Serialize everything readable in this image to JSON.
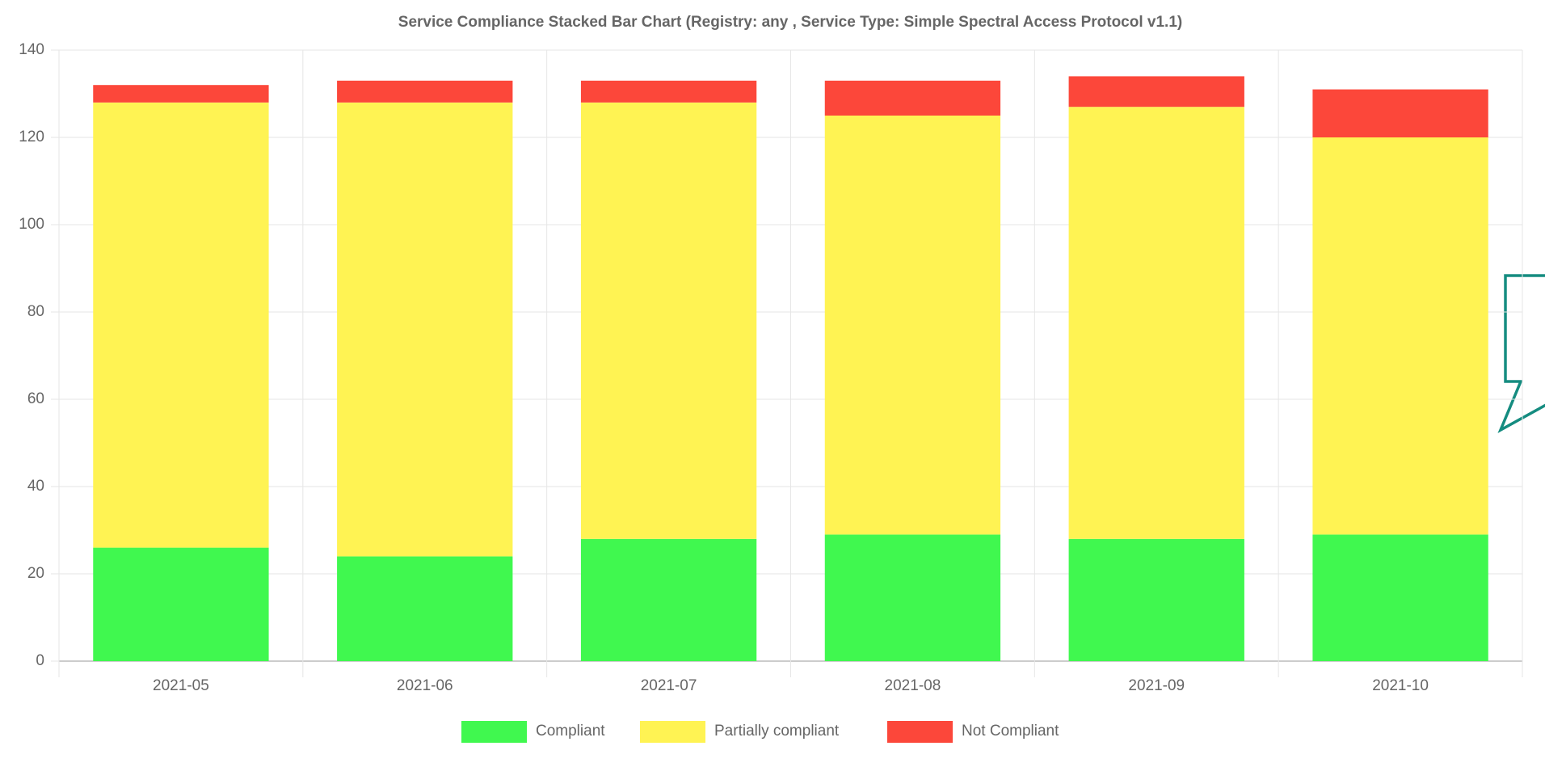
{
  "chart_data": {
    "type": "stacked_bar",
    "title": "Service Compliance Stacked Bar Chart (Registry: any , Service Type: Simple Spectral Access Protocol v1.1)",
    "categories": [
      "2021-05",
      "2021-06",
      "2021-07",
      "2021-08",
      "2021-09",
      "2021-10"
    ],
    "series": [
      {
        "name": "Compliant",
        "color": "#40f84f",
        "values": [
          26,
          24,
          28,
          29,
          28,
          29
        ]
      },
      {
        "name": "Partially compliant",
        "color": "#fff353",
        "values": [
          102,
          104,
          100,
          96,
          99,
          91
        ]
      },
      {
        "name": "Not Compliant",
        "color": "#fc473a",
        "values": [
          4,
          5,
          5,
          8,
          7,
          11
        ]
      }
    ],
    "ylim": [
      0,
      140
    ],
    "yticks": [
      0,
      20,
      40,
      60,
      80,
      100,
      120,
      140
    ],
    "grid": true,
    "legend": "bottom"
  }
}
